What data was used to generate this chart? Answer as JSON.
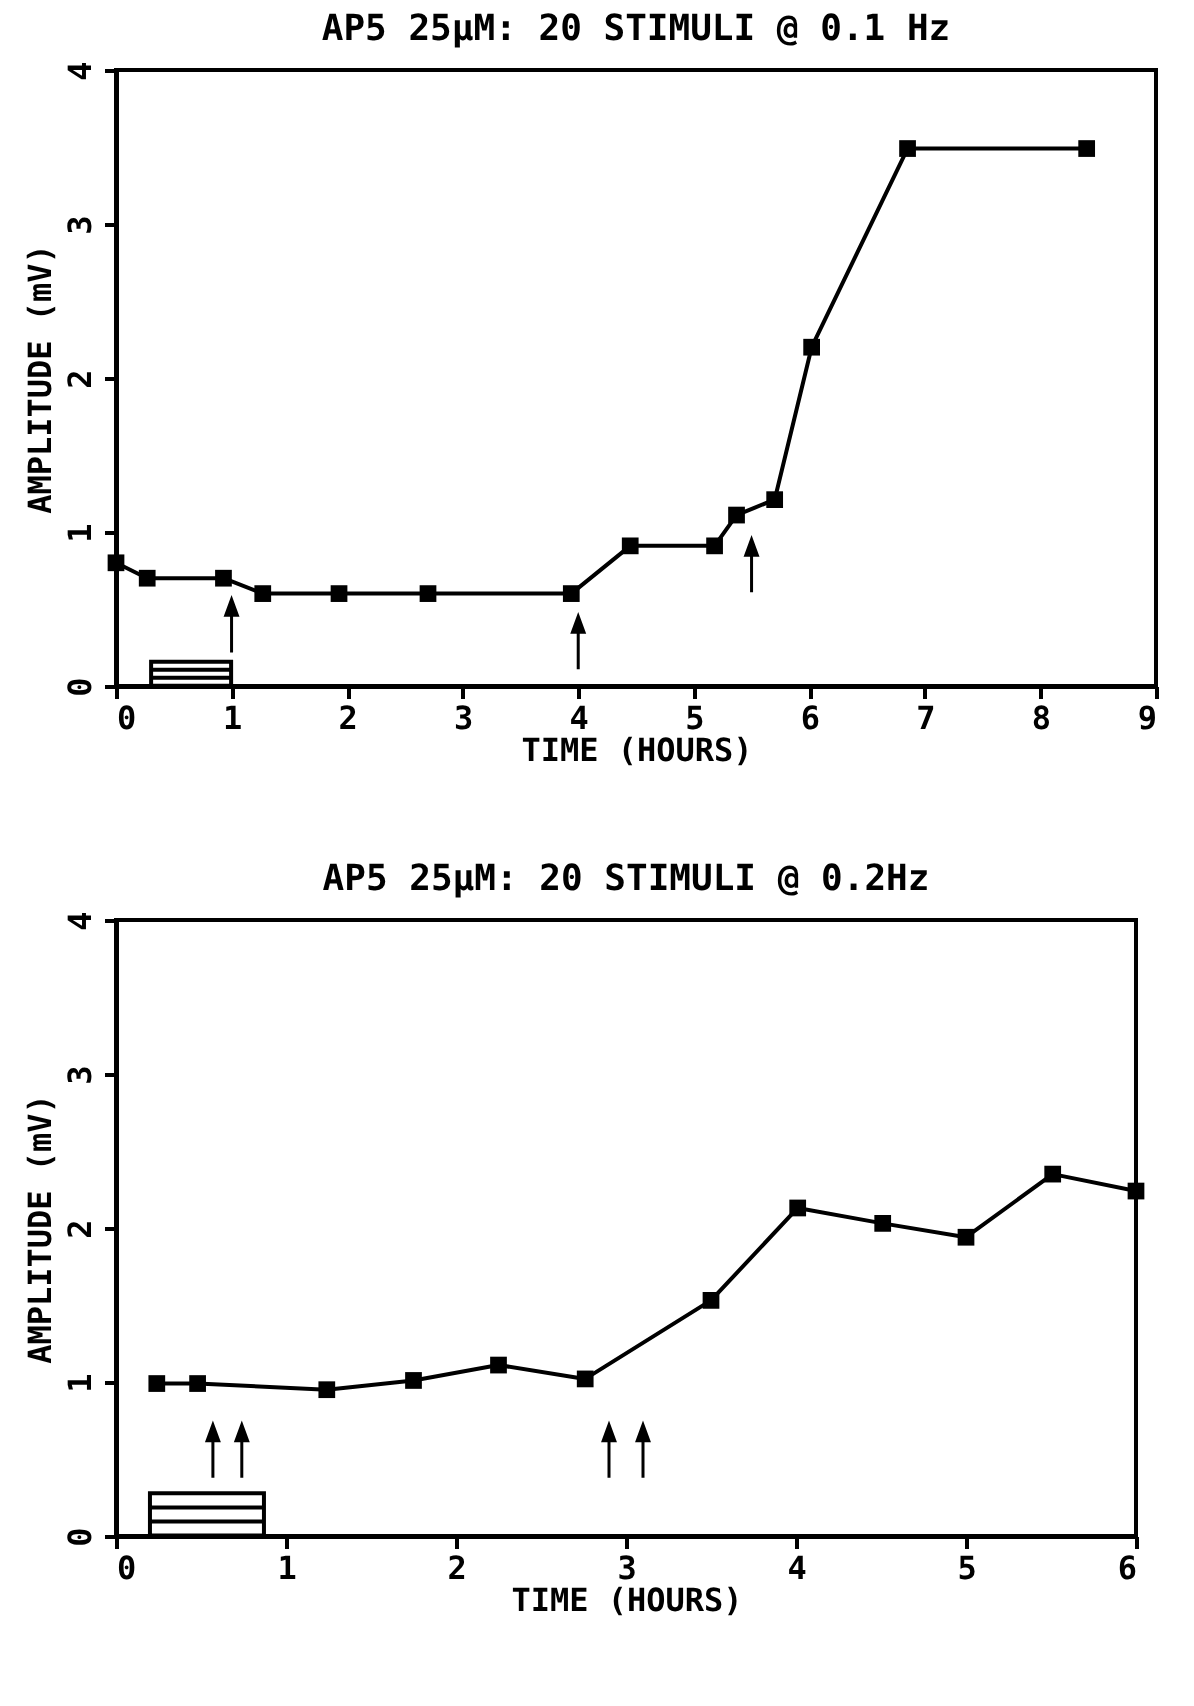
{
  "chart_data": [
    {
      "type": "line",
      "title": "AP5 25μM: 20 STIMULI @ 0.1 Hz",
      "xlabel": "TIME (HOURS)",
      "ylabel": "AMPLITUDE (mV)",
      "marker": "square",
      "xlim": [
        0,
        9
      ],
      "ylim": [
        0,
        4
      ],
      "xticks": [
        0,
        1,
        2,
        3,
        4,
        5,
        6,
        7,
        8,
        9
      ],
      "yticks": [
        0,
        1,
        2,
        3,
        4
      ],
      "x": [
        0,
        0.27,
        0.93,
        1.27,
        1.93,
        2.7,
        3.94,
        4.45,
        5.18,
        5.37,
        5.7,
        6.02,
        6.85,
        8.4
      ],
      "series": [
        {
          "color": "#000000",
          "values": [
            0.8,
            0.7,
            0.7,
            0.6,
            0.6,
            0.6,
            0.6,
            0.91,
            0.91,
            1.11,
            1.21,
            2.2,
            3.49,
            3.49
          ]
        }
      ]
    },
    {
      "type": "line",
      "title": "AP5 25μM: 20 STIMULI @ 0.2Hz",
      "xlabel": "TIME (HOURS)",
      "ylabel": "AMPLITUDE (mV)",
      "marker": "square",
      "xlim": [
        0,
        6
      ],
      "ylim": [
        0,
        4
      ],
      "xticks": [
        0,
        1,
        2,
        3,
        4,
        5,
        6
      ],
      "yticks": [
        0,
        1,
        2,
        3,
        4
      ],
      "x": [
        0.24,
        0.48,
        1.24,
        1.75,
        2.25,
        2.76,
        3.5,
        4.01,
        4.51,
        5.0,
        5.51,
        6.0
      ],
      "series": [
        {
          "color": "#000000",
          "values": [
            0.99,
            0.99,
            0.95,
            1.01,
            1.11,
            1.02,
            1.53,
            2.13,
            2.03,
            1.94,
            2.35,
            2.24
          ]
        }
      ]
    }
  ]
}
